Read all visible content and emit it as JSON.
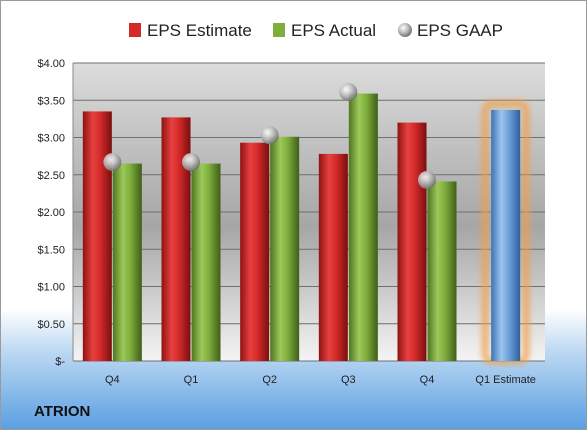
{
  "company": "ATRION",
  "chart_data": {
    "type": "bar",
    "categories": [
      "Q4",
      "Q1",
      "Q2",
      "Q3",
      "Q4",
      "Q1 Estimate"
    ],
    "series": [
      {
        "name": "EPS Estimate",
        "color": "#d42a2a",
        "values": [
          3.35,
          3.27,
          2.93,
          2.78,
          3.2,
          null
        ]
      },
      {
        "name": "EPS Actual",
        "color": "#7fae3c",
        "values": [
          2.65,
          2.65,
          3.01,
          3.59,
          2.41,
          null
        ]
      },
      {
        "name": "EPS GAAP",
        "color": "#b5b5b5",
        "type": "scatter",
        "values": [
          2.67,
          2.67,
          3.03,
          3.61,
          2.43,
          null
        ]
      }
    ],
    "projection": {
      "category": "Q1 Estimate",
      "value": 3.37,
      "color": "#6fa3dc",
      "glow": "#f0a048"
    },
    "yticks": [
      "$4.00",
      "$3.50",
      "$3.00",
      "$2.50",
      "$2.00",
      "$1.50",
      "$1.00",
      "$0.50",
      "$-"
    ],
    "ylim": [
      0,
      4
    ],
    "grid": true,
    "legend_position": "top"
  }
}
